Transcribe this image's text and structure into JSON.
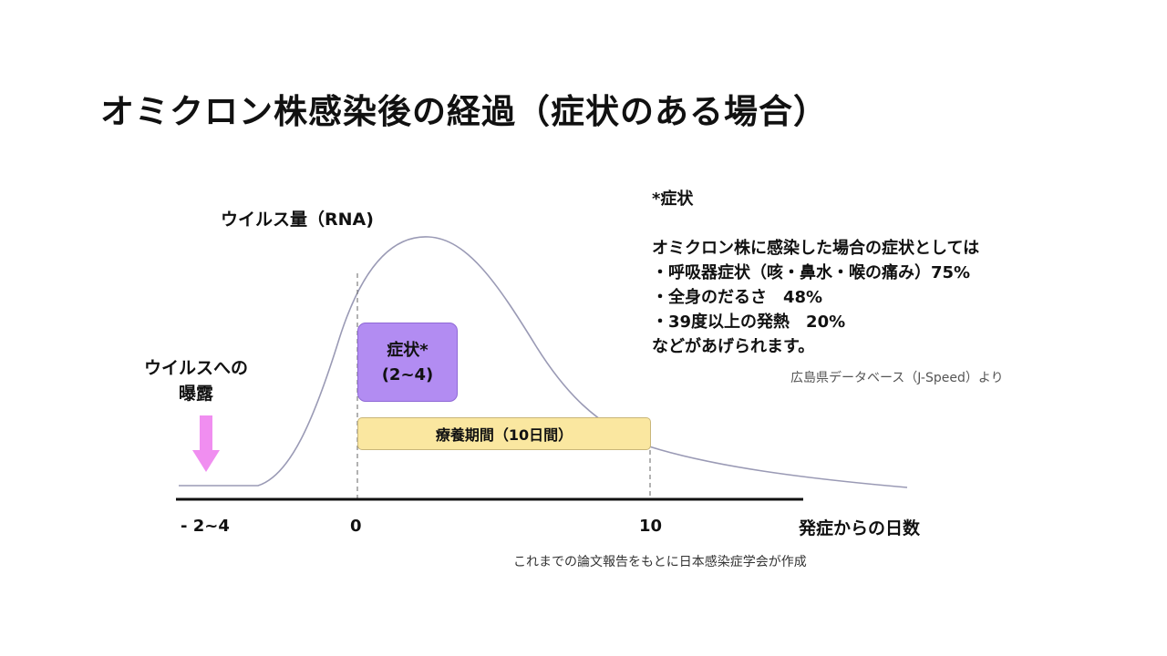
{
  "title": "オミクロン株感染後の経過（症状のある場合）",
  "diagram": {
    "viral_load_label": "ウイルス量（RNA)",
    "exposure_label_line1": "ウイルスへの",
    "exposure_label_line2": "曝露",
    "symptom_box_line1": "症状*",
    "symptom_box_line2": "(2~4)",
    "recovery_label": "療養期間（10日間）",
    "x_axis_title": "発症からの日数",
    "ticks": {
      "left": "- 2~4",
      "zero": "0",
      "ten": "10"
    },
    "source_note": "これまでの論文報告をもとに日本感染症学会が作成",
    "colors": {
      "symptom_box": "#b28cf2",
      "recovery_bar": "#fae7a0",
      "exposure_arrow": "#f08ef0",
      "curve": "#9a9ab5"
    }
  },
  "notes": {
    "heading": "*症状",
    "intro": "オミクロン株に感染した場合の症状としては",
    "items": [
      "・呼吸器症状（咳・鼻水・喉の痛み）75%",
      "・全身のだるさ　48%",
      "・39度以上の発熱　20%"
    ],
    "closing": "などがあげられます。",
    "source": "広島県データベース（J-Speed）より"
  }
}
